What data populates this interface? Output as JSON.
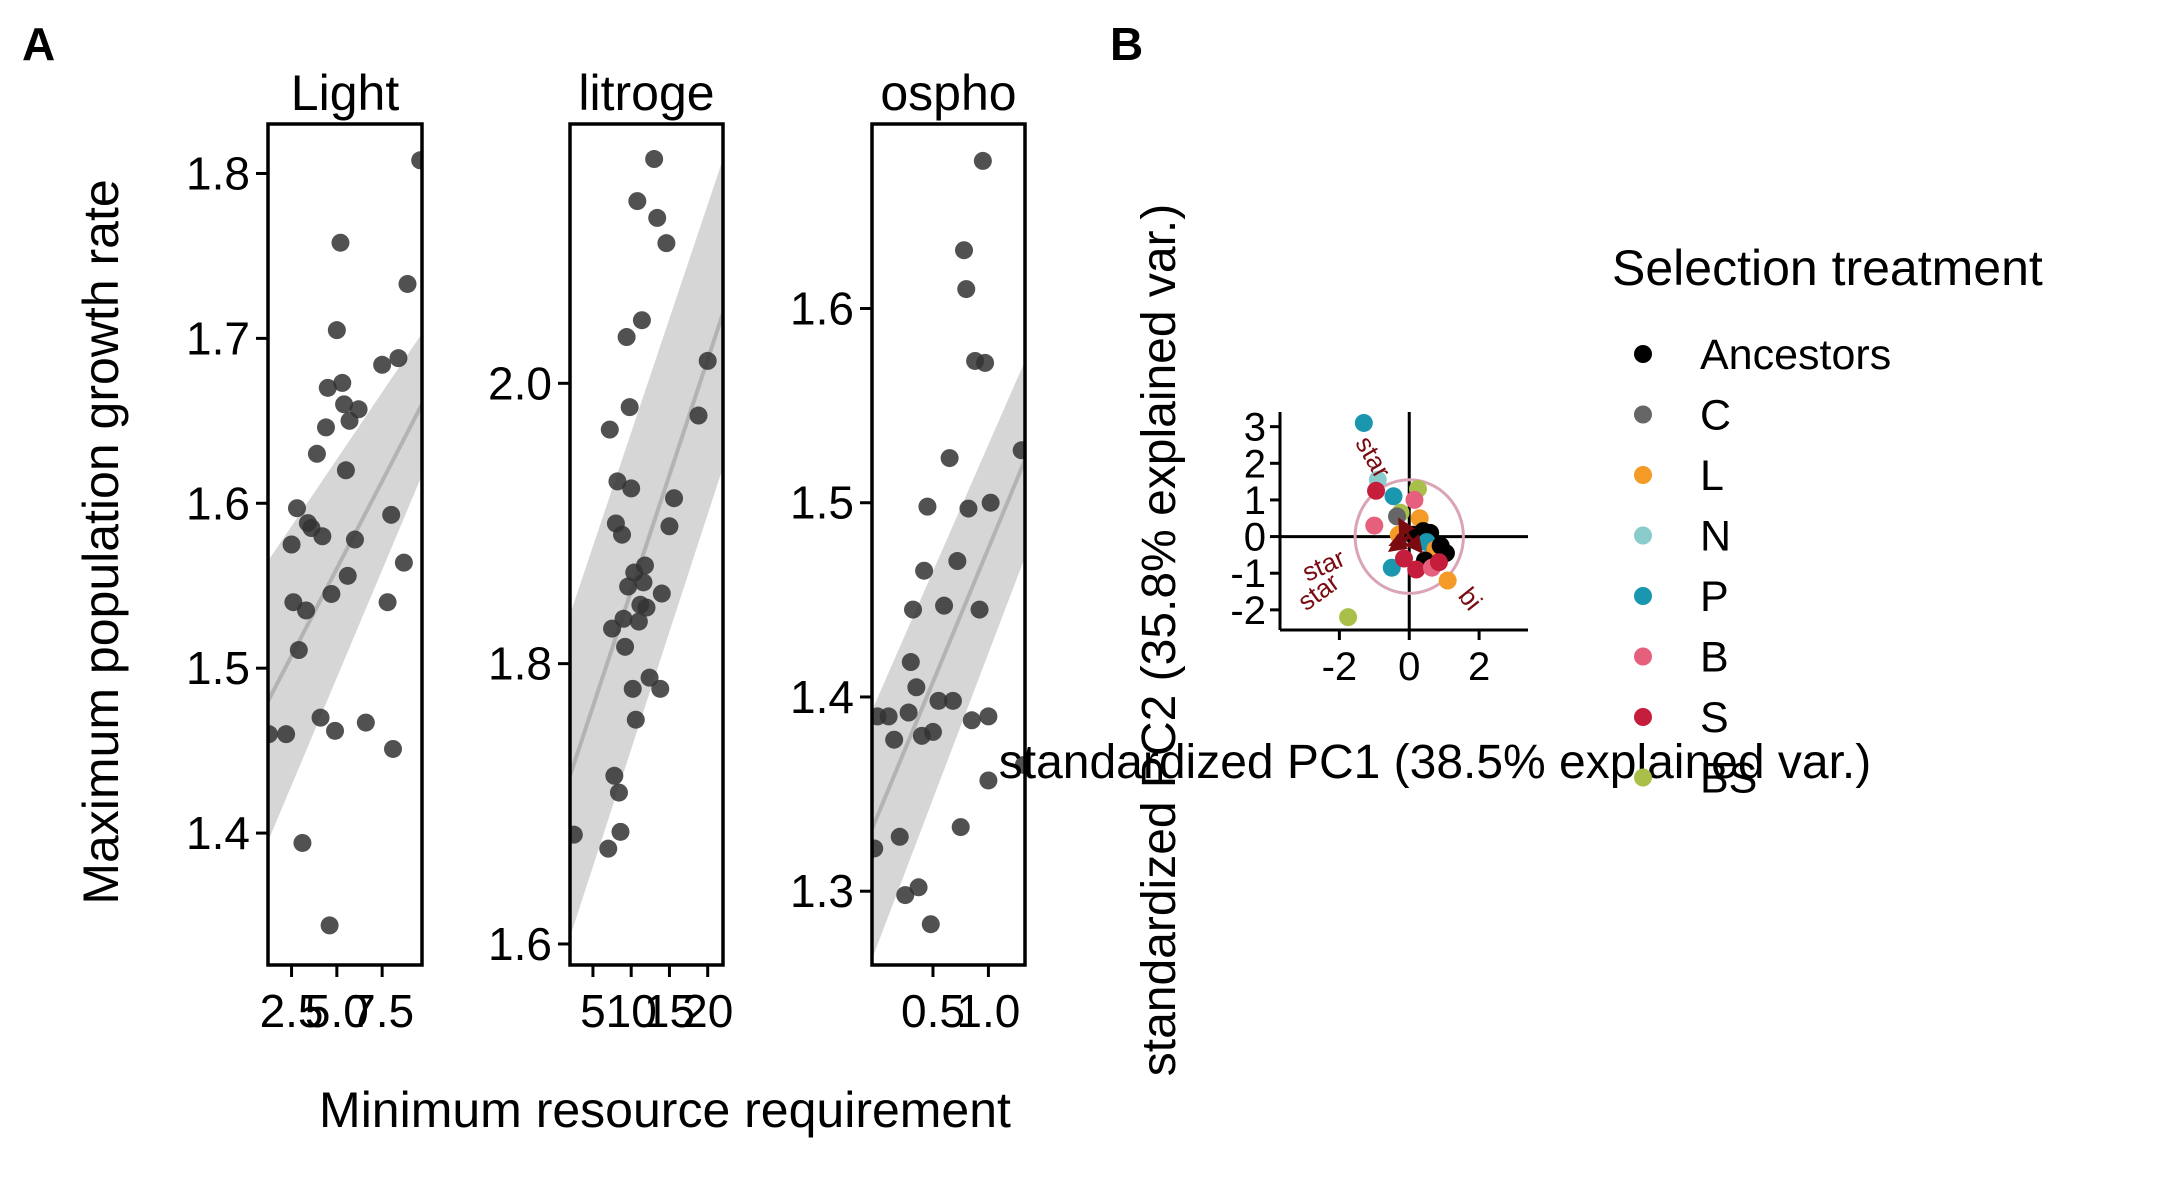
{
  "panels": [
    "A",
    "B"
  ],
  "colors": {
    "point": "#333333",
    "ribbon": "#cfcfcf",
    "fit_line": "#b3b3b3",
    "loading_arrow": "#7a0b10",
    "circle": "#d8a4b6"
  },
  "panel_a": {
    "ylabel": "Maximum population growth rate",
    "xlabel": "Minimum resource requirement"
  },
  "panel_b": {
    "xlabel": "standardized PC1 (38.5% explained var.)",
    "ylabel": "standardized PC2 (35.8% explained var.)"
  },
  "legend": {
    "title": "Selection treatment",
    "position": "right",
    "entries": [
      {
        "label": "Ancestors",
        "color": "#000000"
      },
      {
        "label": "C",
        "color": "#666666"
      },
      {
        "label": "L",
        "color": "#f39b26"
      },
      {
        "label": "N",
        "color": "#8acbcb"
      },
      {
        "label": "P",
        "color": "#1a97ae"
      },
      {
        "label": "B",
        "color": "#e6607e"
      },
      {
        "label": "S",
        "color": "#c51d3c"
      },
      {
        "label": "BS",
        "color": "#a8c04a"
      }
    ]
  },
  "chart_data": [
    {
      "type": "scatter",
      "strip_label": "Light",
      "xlim": [
        1.2,
        9.7
      ],
      "ylim": [
        1.32,
        1.83
      ],
      "xticks": [
        2.5,
        5.0,
        7.5
      ],
      "xtick_labels": [
        "2.5",
        "5.0",
        "7.5"
      ],
      "yticks": [
        1.4,
        1.5,
        1.6,
        1.7,
        1.8
      ],
      "ytick_labels": [
        "1.4",
        "1.5",
        "1.6",
        "1.7",
        "1.8"
      ],
      "smooth": {
        "x": [
          1.2,
          9.7
        ],
        "y": [
          1.48,
          1.66
        ],
        "lower": [
          1.395,
          1.617
        ],
        "upper": [
          1.565,
          1.703
        ]
      },
      "points": [
        [
          1.25,
          1.46
        ],
        [
          2.2,
          1.46
        ],
        [
          2.6,
          1.54
        ],
        [
          2.5,
          1.575
        ],
        [
          2.8,
          1.597
        ],
        [
          2.9,
          1.511
        ],
        [
          3.1,
          1.394
        ],
        [
          3.3,
          1.535
        ],
        [
          3.4,
          1.588
        ],
        [
          3.6,
          1.585
        ],
        [
          3.9,
          1.63
        ],
        [
          4.1,
          1.47
        ],
        [
          4.2,
          1.58
        ],
        [
          4.4,
          1.646
        ],
        [
          4.5,
          1.67
        ],
        [
          4.6,
          1.344
        ],
        [
          4.7,
          1.545
        ],
        [
          4.9,
          1.462
        ],
        [
          5.0,
          1.705
        ],
        [
          5.2,
          1.758
        ],
        [
          5.3,
          1.673
        ],
        [
          5.4,
          1.66
        ],
        [
          5.5,
          1.62
        ],
        [
          5.6,
          1.556
        ],
        [
          5.7,
          1.65
        ],
        [
          6.0,
          1.578
        ],
        [
          6.2,
          1.657
        ],
        [
          6.6,
          1.467
        ],
        [
          7.5,
          1.684
        ],
        [
          7.8,
          1.54
        ],
        [
          8.0,
          1.593
        ],
        [
          8.1,
          1.451
        ],
        [
          8.4,
          1.688
        ],
        [
          8.7,
          1.564
        ],
        [
          8.9,
          1.733
        ],
        [
          9.6,
          1.808
        ]
      ]
    },
    {
      "type": "scatter",
      "strip_label": "litroge",
      "xlim": [
        2,
        22
      ],
      "ylim": [
        1.585,
        2.185
      ],
      "xticks": [
        5,
        10,
        15,
        20
      ],
      "xtick_labels": [
        "5",
        "10",
        "15",
        "20"
      ],
      "yticks": [
        1.6,
        1.8,
        2.0
      ],
      "ytick_labels": [
        "1.6",
        "1.8",
        "2.0"
      ],
      "smooth": {
        "x": [
          2,
          22
        ],
        "y": [
          1.72,
          2.05
        ],
        "lower": [
          1.605,
          1.94
        ],
        "upper": [
          1.835,
          2.16
        ]
      },
      "points": [
        [
          2.5,
          1.678
        ],
        [
          7.0,
          1.668
        ],
        [
          7.2,
          1.967
        ],
        [
          7.5,
          1.825
        ],
        [
          7.8,
          1.72
        ],
        [
          8.0,
          1.9
        ],
        [
          8.2,
          1.93
        ],
        [
          8.4,
          1.708
        ],
        [
          8.6,
          1.68
        ],
        [
          8.8,
          1.892
        ],
        [
          9.0,
          1.832
        ],
        [
          9.2,
          1.812
        ],
        [
          9.4,
          2.033
        ],
        [
          9.6,
          1.855
        ],
        [
          9.8,
          1.983
        ],
        [
          10.0,
          1.925
        ],
        [
          10.2,
          1.782
        ],
        [
          10.4,
          1.865
        ],
        [
          10.6,
          1.76
        ],
        [
          10.8,
          2.13
        ],
        [
          11.0,
          1.83
        ],
        [
          11.2,
          1.842
        ],
        [
          11.4,
          2.045
        ],
        [
          11.6,
          1.858
        ],
        [
          11.8,
          1.87
        ],
        [
          12.0,
          1.84
        ],
        [
          12.4,
          1.79
        ],
        [
          13.0,
          2.16
        ],
        [
          13.4,
          2.118
        ],
        [
          13.8,
          1.782
        ],
        [
          14.0,
          1.85
        ],
        [
          14.6,
          2.1
        ],
        [
          15.0,
          1.898
        ],
        [
          15.6,
          1.918
        ],
        [
          18.8,
          1.977
        ],
        [
          20.0,
          2.016
        ]
      ]
    },
    {
      "type": "scatter",
      "strip_label": "ospho",
      "xlim": [
        -0.05,
        1.33
      ],
      "ylim": [
        1.262,
        1.695
      ],
      "xticks": [
        0.5,
        1.0
      ],
      "xtick_labels": [
        "0.5",
        "1.0"
      ],
      "yticks": [
        1.3,
        1.4,
        1.5,
        1.6
      ],
      "ytick_labels": [
        "1.3",
        "1.4",
        "1.5",
        "1.6"
      ],
      "smooth": {
        "x": [
          -0.05,
          1.33
        ],
        "y": [
          1.332,
          1.522
        ],
        "lower": [
          1.265,
          1.472
        ],
        "upper": [
          1.393,
          1.573
        ]
      },
      "points": [
        [
          -0.03,
          1.322
        ],
        [
          0.0,
          1.39
        ],
        [
          0.1,
          1.39
        ],
        [
          0.15,
          1.378
        ],
        [
          0.2,
          1.328
        ],
        [
          0.25,
          1.298
        ],
        [
          0.28,
          1.392
        ],
        [
          0.3,
          1.418
        ],
        [
          0.32,
          1.445
        ],
        [
          0.35,
          1.405
        ],
        [
          0.37,
          1.302
        ],
        [
          0.4,
          1.38
        ],
        [
          0.42,
          1.465
        ],
        [
          0.45,
          1.498
        ],
        [
          0.48,
          1.283
        ],
        [
          0.5,
          1.382
        ],
        [
          0.55,
          1.398
        ],
        [
          0.6,
          1.447
        ],
        [
          0.65,
          1.523
        ],
        [
          0.68,
          1.398
        ],
        [
          0.72,
          1.47
        ],
        [
          0.75,
          1.333
        ],
        [
          0.78,
          1.63
        ],
        [
          0.8,
          1.61
        ],
        [
          0.82,
          1.497
        ],
        [
          0.85,
          1.388
        ],
        [
          0.88,
          1.573
        ],
        [
          0.92,
          1.445
        ],
        [
          0.95,
          1.676
        ],
        [
          0.97,
          1.572
        ],
        [
          1.0,
          1.39
        ],
        [
          1.0,
          1.357
        ],
        [
          1.02,
          1.5
        ],
        [
          1.3,
          1.527
        ],
        [
          1.32,
          1.365
        ]
      ]
    },
    {
      "type": "scatter",
      "panel": "B",
      "xlim": [
        -3.7,
        3.4
      ],
      "ylim": [
        -2.55,
        3.4
      ],
      "xticks": [
        -2,
        0,
        2
      ],
      "xtick_labels": [
        "-2",
        "0",
        "2"
      ],
      "yticks": [
        -2,
        -1,
        0,
        1,
        2,
        3
      ],
      "ytick_labels": [
        "-2",
        "-1",
        "0",
        "1",
        "2",
        "3"
      ],
      "reference_lines": {
        "x": 0,
        "y": 0
      },
      "circle": {
        "center": [
          0,
          0
        ],
        "radius": 1.55
      },
      "loadings": [
        {
          "label": "star",
          "to": [
            -1.25,
            2.05
          ]
        },
        {
          "label": "star",
          "to": [
            -2.35,
            -1.0
          ]
        },
        {
          "label": "star",
          "to": [
            -2.45,
            -1.7
          ]
        },
        {
          "label": "bi",
          "to": [
            1.55,
            -1.85
          ]
        }
      ],
      "points": [
        {
          "g": "P",
          "x": -1.3,
          "y": 3.1
        },
        {
          "g": "N",
          "x": -0.9,
          "y": 1.55
        },
        {
          "g": "S",
          "x": -0.95,
          "y": 1.25
        },
        {
          "g": "P",
          "x": -0.45,
          "y": 1.1
        },
        {
          "g": "BS",
          "x": 0.25,
          "y": 1.3
        },
        {
          "g": "B",
          "x": 0.15,
          "y": 1.0
        },
        {
          "g": "BS",
          "x": -0.25,
          "y": 0.65
        },
        {
          "g": "B",
          "x": -1.0,
          "y": 0.3
        },
        {
          "g": "C",
          "x": -0.35,
          "y": 0.55
        },
        {
          "g": "L",
          "x": 0.3,
          "y": 0.5
        },
        {
          "g": "L",
          "x": -0.3,
          "y": 0.05
        },
        {
          "g": "Ancestors",
          "x": 0.1,
          "y": 0.05
        },
        {
          "g": "Ancestors",
          "x": 0.4,
          "y": 0.15
        },
        {
          "g": "Ancestors",
          "x": 0.6,
          "y": 0.1
        },
        {
          "g": "P",
          "x": 0.5,
          "y": -0.15
        },
        {
          "g": "L",
          "x": 0.75,
          "y": -0.35
        },
        {
          "g": "Ancestors",
          "x": 0.9,
          "y": -0.25
        },
        {
          "g": "Ancestors",
          "x": 1.05,
          "y": -0.45
        },
        {
          "g": "Ancestors",
          "x": 0.45,
          "y": -0.65
        },
        {
          "g": "S",
          "x": 0.2,
          "y": -0.9
        },
        {
          "g": "B",
          "x": 0.65,
          "y": -0.85
        },
        {
          "g": "S",
          "x": 0.85,
          "y": -0.7
        },
        {
          "g": "L",
          "x": 1.1,
          "y": -1.2
        },
        {
          "g": "P",
          "x": -0.5,
          "y": -0.85
        },
        {
          "g": "S",
          "x": -0.15,
          "y": -0.6
        },
        {
          "g": "BS",
          "x": -1.75,
          "y": -2.2
        }
      ]
    }
  ]
}
